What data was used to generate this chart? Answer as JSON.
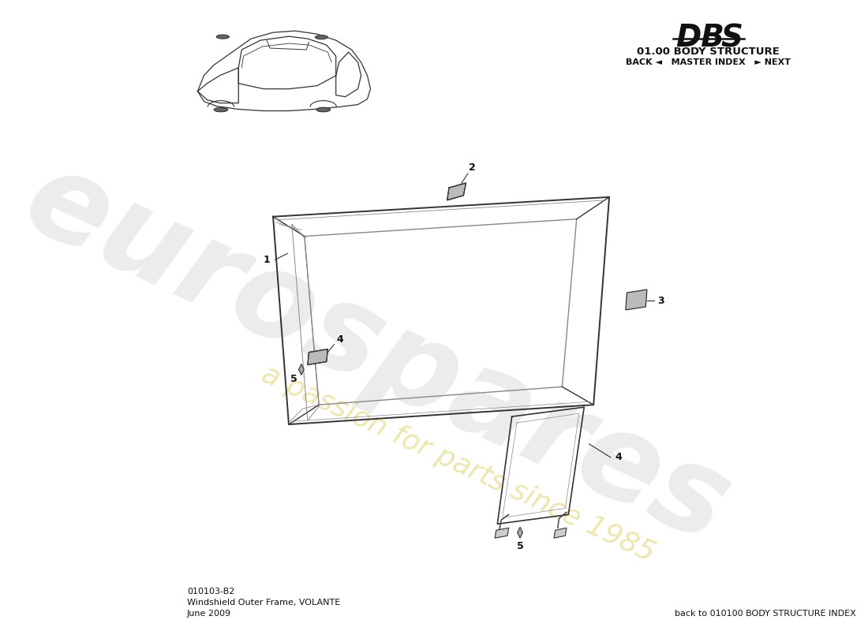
{
  "background_color": "#ffffff",
  "section_title": "01.00 BODY STRUCTURE",
  "nav_text": "BACK ◄   MASTER INDEX   ► NEXT",
  "part_number": "010103-B2",
  "part_name": "Windshield Outer Frame, VOLANTE",
  "date": "June 2009",
  "back_link": "back to 010100 BODY STRUCTURE INDEX",
  "watermark1": "eurospares",
  "watermark2": "a passion for parts since 1985",
  "line_color": "#333333",
  "line_color_light": "#888888",
  "label_color": "#111111"
}
